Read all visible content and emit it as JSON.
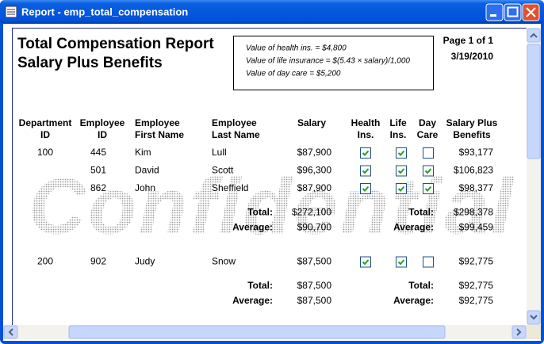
{
  "window": {
    "title": "Report - emp_total_compensation"
  },
  "report": {
    "title": "Total Compensation Report",
    "subtitle": "Salary Plus Benefits",
    "notes": [
      "Value of health ins. = $4,800",
      "Value of life insurance = $(5.43 × salary)/1,000",
      "Value of day care = $5,200"
    ],
    "page": "Page 1 of 1",
    "date": "3/19/2010",
    "watermark": "Confidential",
    "columns": {
      "department": [
        "Department",
        "ID"
      ],
      "id": [
        "Employee",
        "ID"
      ],
      "first": [
        "Employee",
        "First Name"
      ],
      "last": [
        "Employee",
        "Last Name"
      ],
      "salary": [
        "Salary"
      ],
      "health": [
        "Health",
        "Ins."
      ],
      "life": [
        "Life",
        "Ins."
      ],
      "daycare": [
        "Day",
        "Care"
      ],
      "total": [
        "Salary Plus",
        "Benefits"
      ]
    },
    "groups": [
      {
        "department": "100",
        "rows": [
          {
            "id": "445",
            "first": "Kim",
            "last": "Lull",
            "salary": "$87,900",
            "health": true,
            "life": true,
            "daycare": false,
            "total": "$93,177"
          },
          {
            "id": "501",
            "first": "David",
            "last": "Scott",
            "salary": "$96,300",
            "health": true,
            "life": true,
            "daycare": true,
            "total": "$106,823"
          },
          {
            "id": "862",
            "first": "John",
            "last": "Sheffield",
            "salary": "$87,900",
            "health": true,
            "life": true,
            "daycare": true,
            "total": "$98,377"
          }
        ],
        "summary": {
          "total_label": "Total:",
          "average_label": "Average:",
          "salary_total": "$272,100",
          "salary_average": "$90,700",
          "benefits_total": "$298,378",
          "benefits_average": "$99,459"
        }
      },
      {
        "department": "200",
        "rows": [
          {
            "id": "902",
            "first": "Judy",
            "last": "Snow",
            "salary": "$87,500",
            "health": true,
            "life": true,
            "daycare": false,
            "total": "$92,775"
          }
        ],
        "summary": {
          "total_label": "Total:",
          "average_label": "Average:",
          "salary_total": "$87,500",
          "salary_average": "$87,500",
          "benefits_total": "$92,775",
          "benefits_average": "$92,775"
        }
      }
    ]
  }
}
